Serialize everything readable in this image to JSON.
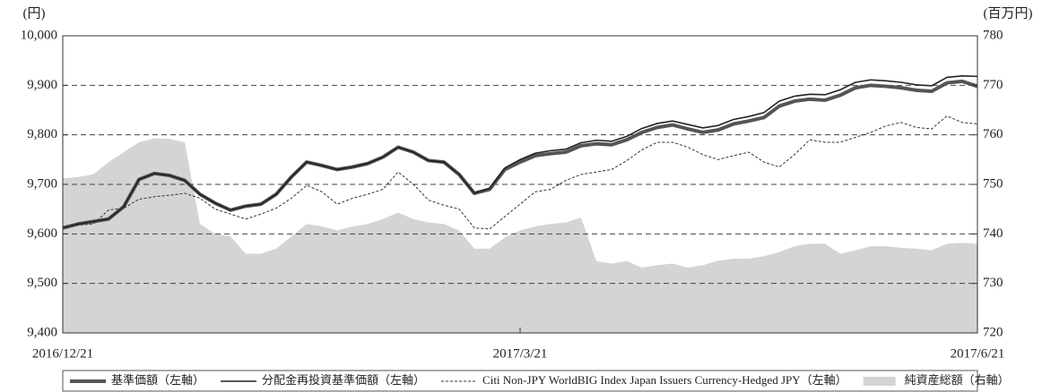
{
  "chart_data": {
    "type": "line",
    "y_label": "(円)",
    "y2_label": "(百万円)",
    "categories": [
      "2016/12/21",
      null,
      null,
      null,
      null,
      null,
      null,
      null,
      null,
      null,
      null,
      null,
      null,
      null,
      null,
      null,
      null,
      null,
      null,
      null,
      null,
      null,
      null,
      null,
      null,
      null,
      null,
      null,
      null,
      null,
      "2017/3/21",
      null,
      null,
      null,
      null,
      null,
      null,
      null,
      null,
      null,
      null,
      null,
      null,
      null,
      null,
      null,
      null,
      null,
      null,
      null,
      null,
      null,
      null,
      null,
      null,
      null,
      null,
      null,
      null,
      null,
      "2017/6/21"
    ],
    "ylim": [
      9400,
      10000
    ],
    "yticks": [
      {
        "value": 9400,
        "label": "9,400"
      },
      {
        "value": 9500,
        "label": "9,500"
      },
      {
        "value": 9600,
        "label": "9,600"
      },
      {
        "value": 9700,
        "label": "9,700"
      },
      {
        "value": 9800,
        "label": "9,800"
      },
      {
        "value": 9900,
        "label": "9,900"
      },
      {
        "value": 10000,
        "label": "10,000"
      }
    ],
    "y2lim": [
      720,
      780
    ],
    "y2ticks": [
      720,
      730,
      740,
      750,
      760,
      770,
      780
    ],
    "grid": true,
    "legend": "bottom",
    "series": [
      {
        "name": "基準価額（左軸）",
        "color": "#555555",
        "width": 4,
        "dash": false,
        "values": [
          9612,
          9620,
          9625,
          9630,
          9655,
          9710,
          9722,
          9718,
          9708,
          9680,
          9662,
          9648,
          9656,
          9660,
          9680,
          9715,
          9745,
          9738,
          9730,
          9735,
          9742,
          9755,
          9775,
          9765,
          9748,
          9745,
          9720,
          9682,
          9690,
          9730,
          9745,
          9758,
          9762,
          9765,
          9778,
          9782,
          9780,
          9790,
          9805,
          9815,
          9820,
          9812,
          9805,
          9810,
          9822,
          9828,
          9835,
          9858,
          9868,
          9872,
          9870,
          9880,
          9895,
          9900,
          9898,
          9895,
          9890,
          9888,
          9905,
          9908,
          9898
        ]
      },
      {
        "name": "分配金再投資基準価額（左軸）",
        "color": "#222222",
        "width": 1.6,
        "dash": false,
        "values": [
          9612,
          9620,
          9625,
          9630,
          9655,
          9710,
          9722,
          9718,
          9708,
          9680,
          9662,
          9648,
          9656,
          9660,
          9680,
          9715,
          9745,
          9738,
          9730,
          9735,
          9742,
          9755,
          9775,
          9765,
          9748,
          9745,
          9720,
          9682,
          9692,
          9733,
          9750,
          9763,
          9768,
          9771,
          9784,
          9789,
          9787,
          9797,
          9813,
          9823,
          9828,
          9821,
          9814,
          9819,
          9831,
          9837,
          9845,
          9868,
          9878,
          9882,
          9881,
          9891,
          9906,
          9911,
          9909,
          9906,
          9901,
          9899,
          9916,
          9919,
          9918
        ]
      },
      {
        "name": "Citi Non-JPY WorldBIG Index Japan Issuers Currency-Hedged JPY（左軸）",
        "color": "#333333",
        "width": 1,
        "dash": true,
        "values": [
          9612,
          9618,
          9620,
          9648,
          9652,
          9670,
          9675,
          9678,
          9682,
          9672,
          9650,
          9640,
          9630,
          9640,
          9652,
          9672,
          9698,
          9685,
          9660,
          9672,
          9680,
          9690,
          9725,
          9700,
          9668,
          9658,
          9650,
          9612,
          9610,
          9635,
          9660,
          9685,
          9690,
          9708,
          9720,
          9725,
          9730,
          9748,
          9770,
          9785,
          9785,
          9775,
          9760,
          9750,
          9758,
          9765,
          9745,
          9735,
          9760,
          9790,
          9785,
          9785,
          9795,
          9805,
          9818,
          9825,
          9815,
          9812,
          9838,
          9825,
          9822
        ]
      },
      {
        "name": "純資産総額（右軸）",
        "color": "#d4d4d4",
        "axis": "y2",
        "kind": "area",
        "values": [
          751.2,
          751.5,
          752,
          754.5,
          756.5,
          758.5,
          759.3,
          759.2,
          758.5,
          742,
          740,
          739.5,
          736,
          736,
          737,
          739.5,
          742,
          741.5,
          740.7,
          741.5,
          742,
          743,
          744.3,
          743,
          742.3,
          742,
          740.7,
          737,
          737,
          739.3,
          740.7,
          741.5,
          742,
          742.3,
          743.3,
          734.5,
          734,
          734.5,
          733.2,
          733.7,
          734,
          733.2,
          733.7,
          734.6,
          735,
          735,
          735.5,
          736.3,
          737.5,
          738,
          738,
          736,
          736.7,
          737.5,
          737.5,
          737.2,
          737,
          736.7,
          738,
          738.2,
          738
        ]
      }
    ]
  }
}
